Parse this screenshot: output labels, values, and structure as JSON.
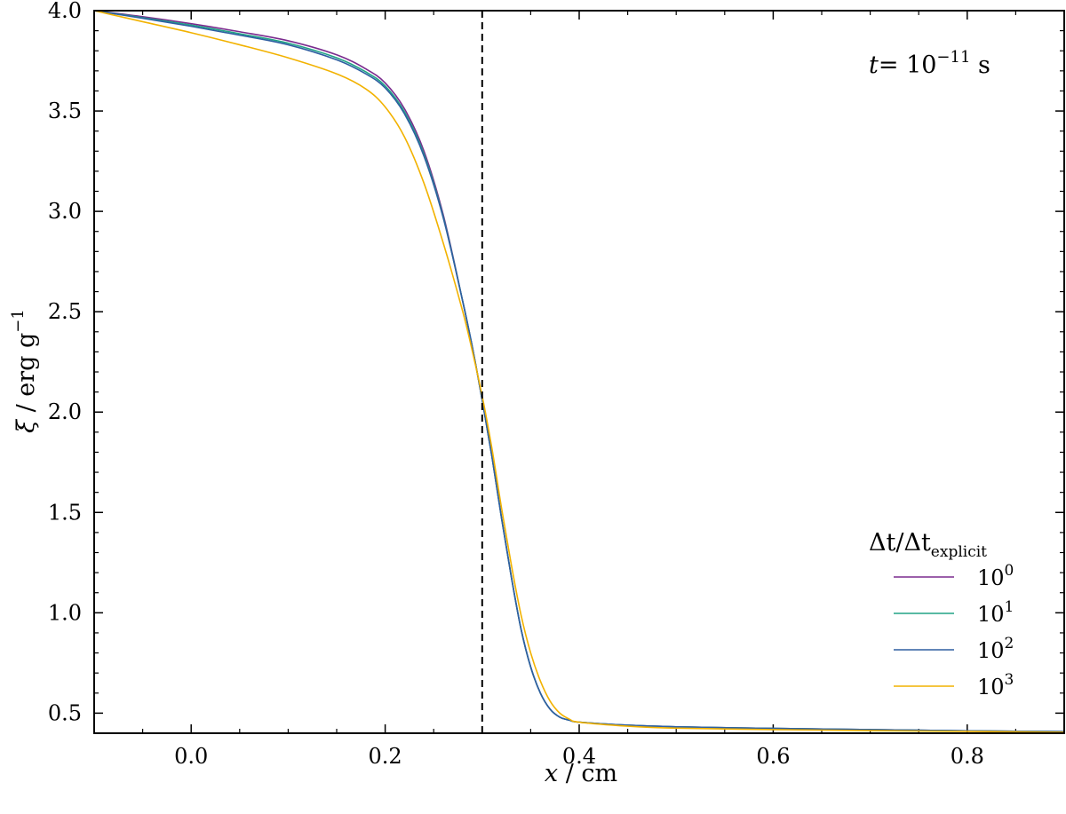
{
  "chart_data": {
    "type": "line",
    "title": "",
    "annotation": {
      "var": "t",
      "eq": "= 10",
      "exp": "−11",
      "unit": " s"
    },
    "xlabel": {
      "var": "x",
      "unit": " / cm"
    },
    "ylabel": {
      "var": "ξ",
      "unit": " / erg g",
      "exp": "−1"
    },
    "xlim": [
      -0.1,
      0.9
    ],
    "ylim": [
      0.4,
      4.0
    ],
    "xticks": [
      0.0,
      0.2,
      0.4,
      0.6,
      0.8
    ],
    "xtick_labels": [
      "0.0",
      "0.2",
      "0.4",
      "0.6",
      "0.8"
    ],
    "yticks": [
      0.5,
      1.0,
      1.5,
      2.0,
      2.5,
      3.0,
      3.5,
      4.0
    ],
    "ytick_labels": [
      "0.5",
      "1.0",
      "1.5",
      "2.0",
      "2.5",
      "3.0",
      "3.5",
      "4.0"
    ],
    "vline": {
      "x": 0.3,
      "style": "dashed",
      "color": "#000000"
    },
    "legend": {
      "title": "Δt/Δt",
      "title_sub": "explicit",
      "placement": "lower-right"
    },
    "series": [
      {
        "name_base": "10",
        "name_exp": "0",
        "color": "#7b2c8e",
        "points": [
          [
            -0.1,
            4.0
          ],
          [
            -0.05,
            3.97
          ],
          [
            0.0,
            3.935
          ],
          [
            0.05,
            3.895
          ],
          [
            0.1,
            3.85
          ],
          [
            0.15,
            3.78
          ],
          [
            0.18,
            3.71
          ],
          [
            0.2,
            3.64
          ],
          [
            0.22,
            3.51
          ],
          [
            0.24,
            3.3
          ],
          [
            0.26,
            2.98
          ],
          [
            0.28,
            2.55
          ],
          [
            0.29,
            2.32
          ],
          [
            0.3,
            2.06
          ],
          [
            0.31,
            1.78
          ],
          [
            0.32,
            1.47
          ],
          [
            0.33,
            1.18
          ],
          [
            0.34,
            0.92
          ],
          [
            0.35,
            0.73
          ],
          [
            0.36,
            0.6
          ],
          [
            0.37,
            0.52
          ],
          [
            0.38,
            0.48
          ],
          [
            0.39,
            0.465
          ],
          [
            0.4,
            0.455
          ],
          [
            0.45,
            0.44
          ],
          [
            0.5,
            0.432
          ],
          [
            0.6,
            0.424
          ],
          [
            0.7,
            0.418
          ],
          [
            0.8,
            0.412
          ],
          [
            0.9,
            0.408
          ]
        ]
      },
      {
        "name_base": "10",
        "name_exp": "1",
        "color": "#20a386",
        "points": [
          [
            -0.1,
            4.0
          ],
          [
            -0.05,
            3.965
          ],
          [
            0.0,
            3.928
          ],
          [
            0.05,
            3.885
          ],
          [
            0.1,
            3.838
          ],
          [
            0.15,
            3.765
          ],
          [
            0.18,
            3.695
          ],
          [
            0.2,
            3.625
          ],
          [
            0.22,
            3.495
          ],
          [
            0.24,
            3.285
          ],
          [
            0.26,
            2.97
          ],
          [
            0.28,
            2.55
          ],
          [
            0.29,
            2.32
          ],
          [
            0.3,
            2.06
          ],
          [
            0.31,
            1.78
          ],
          [
            0.32,
            1.47
          ],
          [
            0.33,
            1.18
          ],
          [
            0.34,
            0.92
          ],
          [
            0.35,
            0.73
          ],
          [
            0.36,
            0.6
          ],
          [
            0.37,
            0.52
          ],
          [
            0.38,
            0.48
          ],
          [
            0.39,
            0.465
          ],
          [
            0.4,
            0.455
          ],
          [
            0.45,
            0.44
          ],
          [
            0.5,
            0.432
          ],
          [
            0.6,
            0.424
          ],
          [
            0.7,
            0.418
          ],
          [
            0.8,
            0.412
          ],
          [
            0.9,
            0.408
          ]
        ]
      },
      {
        "name_base": "10",
        "name_exp": "2",
        "color": "#2e5fa1",
        "points": [
          [
            -0.1,
            4.0
          ],
          [
            -0.05,
            3.962
          ],
          [
            0.0,
            3.922
          ],
          [
            0.05,
            3.878
          ],
          [
            0.1,
            3.83
          ],
          [
            0.15,
            3.755
          ],
          [
            0.18,
            3.685
          ],
          [
            0.2,
            3.615
          ],
          [
            0.22,
            3.485
          ],
          [
            0.24,
            3.275
          ],
          [
            0.26,
            2.965
          ],
          [
            0.28,
            2.55
          ],
          [
            0.29,
            2.32
          ],
          [
            0.3,
            2.06
          ],
          [
            0.31,
            1.78
          ],
          [
            0.32,
            1.47
          ],
          [
            0.33,
            1.18
          ],
          [
            0.34,
            0.92
          ],
          [
            0.35,
            0.73
          ],
          [
            0.36,
            0.6
          ],
          [
            0.37,
            0.52
          ],
          [
            0.38,
            0.48
          ],
          [
            0.39,
            0.465
          ],
          [
            0.4,
            0.455
          ],
          [
            0.45,
            0.44
          ],
          [
            0.5,
            0.432
          ],
          [
            0.6,
            0.424
          ],
          [
            0.7,
            0.418
          ],
          [
            0.8,
            0.412
          ],
          [
            0.9,
            0.408
          ]
        ]
      },
      {
        "name_base": "10",
        "name_exp": "3",
        "color": "#f2b200",
        "points": [
          [
            -0.1,
            4.0
          ],
          [
            -0.05,
            3.945
          ],
          [
            0.0,
            3.89
          ],
          [
            0.05,
            3.83
          ],
          [
            0.1,
            3.765
          ],
          [
            0.15,
            3.685
          ],
          [
            0.18,
            3.61
          ],
          [
            0.2,
            3.52
          ],
          [
            0.22,
            3.37
          ],
          [
            0.24,
            3.14
          ],
          [
            0.26,
            2.84
          ],
          [
            0.28,
            2.5
          ],
          [
            0.29,
            2.3
          ],
          [
            0.3,
            2.08
          ],
          [
            0.31,
            1.82
          ],
          [
            0.32,
            1.52
          ],
          [
            0.33,
            1.24
          ],
          [
            0.34,
            0.99
          ],
          [
            0.35,
            0.8
          ],
          [
            0.36,
            0.66
          ],
          [
            0.37,
            0.56
          ],
          [
            0.38,
            0.5
          ],
          [
            0.39,
            0.47
          ],
          [
            0.4,
            0.455
          ],
          [
            0.45,
            0.435
          ],
          [
            0.5,
            0.425
          ],
          [
            0.6,
            0.418
          ],
          [
            0.7,
            0.413
          ],
          [
            0.8,
            0.409
          ],
          [
            0.9,
            0.405
          ]
        ]
      }
    ]
  }
}
